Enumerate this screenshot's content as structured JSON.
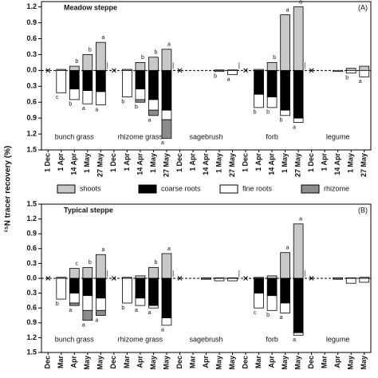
{
  "chart_data": [
    {
      "type": "bar",
      "title": "Meadow steppe",
      "panel_label": "(A)",
      "groups": [
        "bunch grass",
        "rhizome grass",
        "sagebrush",
        "forb",
        "legume"
      ],
      "categories": [
        "1 Dec",
        "1 Apr",
        "14 Apr",
        "1 May",
        "27 May",
        "1 Dec",
        "1 Apr",
        "14 Apr",
        "1 May",
        "27 May",
        "1 Dec",
        "1 Apr",
        "14 Apr",
        "1 May",
        "27 May",
        "1 Dec",
        "1 Apr",
        "14 Apr",
        "1 May",
        "27 May",
        "1 Dec",
        "1 Apr",
        "14 Apr",
        "1 May",
        "27 May"
      ],
      "ylim": [
        -1.5,
        1.3
      ],
      "yticks": [
        1.2,
        0.9,
        0.6,
        0.3,
        {
          "value": 0,
          "label": "0.0"
        },
        {
          "value": -0.3,
          "label": "0.3"
        },
        {
          "value": -0.6,
          "label": "0.6"
        },
        {
          "value": -0.9,
          "label": "0.9"
        },
        {
          "value": -1.2,
          "label": "1.2"
        },
        {
          "value": -1.5,
          "label": "1.5"
        }
      ],
      "series": [
        {
          "name": "shoots",
          "color": "#c8c8c8",
          "values": [
            null,
            0.02,
            0.08,
            0.3,
            0.53,
            null,
            0.02,
            0.15,
            0.25,
            0.4,
            null,
            0,
            0,
            0.01,
            0.01,
            null,
            0.02,
            0.15,
            1.05,
            1.2,
            null,
            0,
            0,
            0.04,
            0.08
          ],
          "value_labels": [
            null,
            null,
            "b",
            "b",
            "a",
            null,
            null,
            "b",
            "b",
            "a",
            null,
            null,
            null,
            null,
            null,
            null,
            null,
            "b",
            "a",
            "a",
            null,
            null,
            null,
            null,
            null
          ]
        },
        {
          "name": "coarse roots",
          "color": "#000000",
          "values": [
            null,
            0,
            -0.35,
            -0.38,
            -0.4,
            null,
            0,
            -0.35,
            -0.55,
            -0.75,
            null,
            0,
            0,
            0,
            0,
            null,
            -0.45,
            -0.5,
            -0.75,
            -0.9,
            null,
            0,
            0,
            0,
            0
          ]
        },
        {
          "name": "fine roots",
          "color": "#ffffff",
          "values": [
            null,
            -0.42,
            -0.2,
            -0.25,
            -0.25,
            null,
            -0.5,
            -0.2,
            -0.2,
            -0.18,
            null,
            0,
            0,
            -0.02,
            -0.08,
            null,
            -0.25,
            -0.2,
            -0.1,
            -0.08,
            null,
            0,
            -0.02,
            -0.05,
            -0.12
          ],
          "value_labels": [
            null,
            "c",
            "b",
            "a",
            "a",
            null,
            "b",
            "b",
            "a",
            "a",
            null,
            null,
            null,
            "b",
            "a",
            null,
            "b",
            "b",
            "b",
            "a",
            null,
            null,
            null,
            "b",
            "a"
          ]
        },
        {
          "name": "rhizome",
          "color": "#8c8c8c",
          "values": [
            null,
            0,
            0,
            0,
            0,
            null,
            0,
            -0.05,
            -0.1,
            -0.35,
            null,
            0,
            0,
            0,
            0,
            null,
            0,
            0,
            0,
            0,
            null,
            0,
            0,
            0,
            0
          ]
        }
      ]
    },
    {
      "type": "bar",
      "title": "Typical steppe",
      "panel_label": "(B)",
      "groups": [
        "bunch grass",
        "rhizome grass",
        "sagebrush",
        "forb",
        "legume"
      ],
      "categories": [
        "Dec",
        "Mar",
        "Apr",
        "May",
        "May",
        "Dec",
        "Mar",
        "Apr",
        "May",
        "May",
        "Dec",
        "Mar",
        "Apr",
        "May",
        "May",
        "Dec",
        "Mar",
        "Apr",
        "May",
        "May",
        "Dec",
        "Mar",
        "Apr",
        "May",
        "May"
      ],
      "ylim": [
        -1.5,
        1.5
      ],
      "yticks": [
        1.5,
        1.2,
        0.9,
        0.6,
        0.3,
        {
          "value": 0,
          "label": "0.0"
        },
        {
          "value": -0.3,
          "label": "0.3"
        },
        {
          "value": -0.6,
          "label": "0.6"
        },
        {
          "value": -0.9,
          "label": "0.9"
        },
        {
          "value": -1.2,
          "label": "1.2"
        },
        {
          "value": -1.5,
          "label": "1.5"
        }
      ],
      "series": [
        {
          "name": "shoots",
          "color": "#c8c8c8",
          "values": [
            null,
            0.02,
            0.2,
            0.22,
            0.48,
            null,
            0.02,
            0.05,
            0.22,
            0.5,
            null,
            0,
            0.01,
            0.01,
            0.01,
            null,
            0.02,
            0.05,
            0.52,
            1.1,
            null,
            0,
            0.01,
            0.01,
            0.02
          ],
          "value_labels": [
            null,
            null,
            "c",
            "b",
            "a",
            null,
            null,
            null,
            "b",
            "a",
            null,
            null,
            null,
            null,
            null,
            null,
            null,
            null,
            "a",
            "a",
            null,
            null,
            null,
            null,
            null
          ]
        },
        {
          "name": "coarse roots",
          "color": "#000000",
          "values": [
            null,
            0,
            -0.3,
            -0.35,
            -0.4,
            null,
            0,
            -0.4,
            -0.55,
            -0.8,
            null,
            0,
            0,
            0,
            0,
            null,
            -0.3,
            -0.35,
            -0.5,
            -1.1,
            null,
            0,
            0,
            0,
            0
          ]
        },
        {
          "name": "fine roots",
          "color": "#ffffff",
          "values": [
            null,
            -0.42,
            -0.2,
            -0.3,
            -0.25,
            null,
            -0.5,
            -0.15,
            -0.05,
            -0.15,
            null,
            0,
            -0.02,
            -0.05,
            -0.05,
            null,
            -0.3,
            -0.3,
            -0.2,
            -0.05,
            null,
            0,
            -0.02,
            -0.1,
            -0.08
          ],
          "value_labels": [
            null,
            "b",
            "a",
            "a",
            "a",
            null,
            "b",
            "a",
            "a",
            "a",
            null,
            null,
            null,
            null,
            null,
            null,
            "c",
            "b",
            "a",
            "a",
            null,
            null,
            null,
            null,
            null
          ]
        },
        {
          "name": "rhizome",
          "color": "#8c8c8c",
          "values": [
            null,
            0,
            -0.05,
            -0.2,
            -0.1,
            null,
            0,
            0,
            0,
            0,
            null,
            0,
            0,
            0,
            0,
            null,
            0,
            0,
            0,
            0,
            null,
            0,
            0,
            0,
            0
          ]
        }
      ]
    }
  ],
  "ylabel": "¹⁵N tracer recovery (%)"
}
